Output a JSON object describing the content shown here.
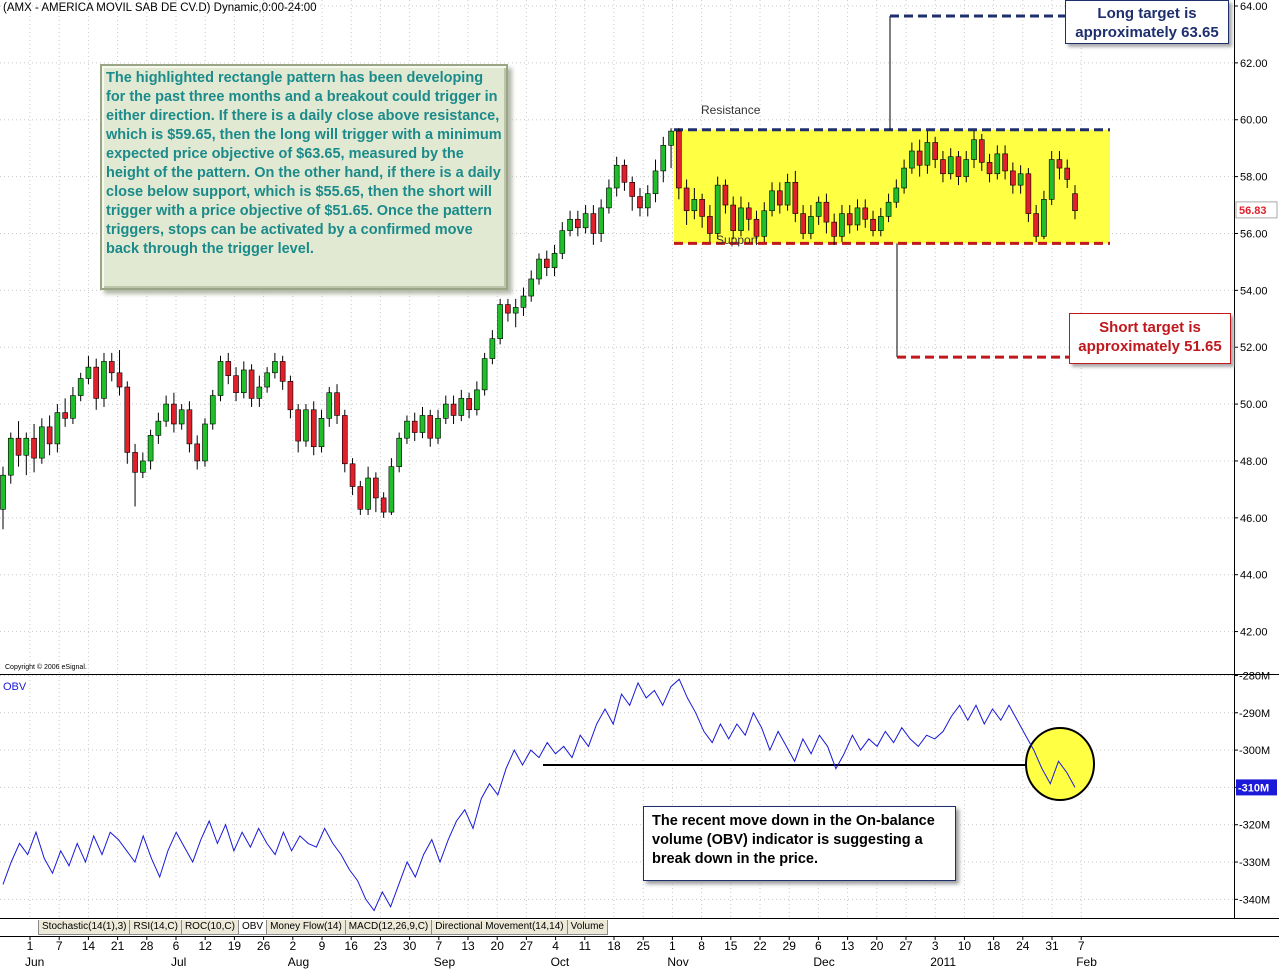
{
  "header": {
    "title": "(AMX - AMERICA MOVIL SAB DE CV.D) Dynamic,0:00-24:00"
  },
  "copyright": "Copyright © 2006 eSignal.",
  "annotations": {
    "main_note": "The highlighted rectangle pattern has been developing for the past three months and a breakout could trigger in either direction. If there is a daily close above resistance, which is $59.65, then the long will trigger with a minimum expected price objective of $63.65, measured by the height of the pattern. On the other hand, if there is a daily close below support, which is $55.65, then the short will trigger with a price objective of $51.65. Once the pattern triggers, stops can be activated by a confirmed move back through the trigger level.",
    "long_target": "Long target is approximately  63.65",
    "short_target": "Short target is approximately 51.65",
    "obv_note": "The recent move down in the On-balance volume (OBV) indicator is suggesting a break down in the price.",
    "resistance": "Resistance",
    "support": "Support"
  },
  "indicator_tabs": [
    "Stochastic(14(1),3)",
    "RSI(14,C)",
    "ROC(10,C)",
    "OBV",
    "Money Flow(14)",
    "MACD(12,26,9,C)",
    "Directional Movement(14,14)",
    "Volume"
  ],
  "active_tab": "OBV",
  "colors": {
    "up": "#1fbe2a",
    "down": "#e0202a",
    "rect_fill": "#ffff44",
    "resistance_line": "#1e2f6d",
    "support_line": "#c0181c",
    "obv_line": "#1a1ad8",
    "last_price_bg": "#ffffff",
    "last_price_fg": "#e0202a",
    "obv_badge_bg": "#1a1ad8"
  },
  "chart_data": [
    {
      "type": "candlestick",
      "title": "(AMX - AMERICA MOVIL SAB DE CV.D) Dynamic,0:00-24:00",
      "ylim": [
        41,
        64
      ],
      "y_ticks": [
        "64.00",
        "62.00",
        "60.00",
        "58.00",
        "56.00",
        "54.00",
        "52.00",
        "50.00",
        "48.00",
        "46.00",
        "44.00",
        "42.00"
      ],
      "last_price": "56.83",
      "resistance": 59.65,
      "support": 55.65,
      "long_target": 63.65,
      "short_target": 51.65,
      "x_day_labels": [
        "1",
        "7",
        "14",
        "21",
        "28",
        "6",
        "12",
        "19",
        "26",
        "2",
        "9",
        "16",
        "23",
        "30",
        "7",
        "13",
        "20",
        "27",
        "4",
        "11",
        "18",
        "25",
        "1",
        "8",
        "15",
        "22",
        "29",
        "6",
        "13",
        "20",
        "27",
        "3",
        "10",
        "18",
        "24",
        "31",
        "7"
      ],
      "x_month_labels": [
        "Jun",
        "Jul",
        "Aug",
        "Sep",
        "Oct",
        "Nov",
        "Dec",
        "2011",
        "Feb"
      ],
      "candles": [
        [
          46.3,
          47.5,
          45.6,
          47.8
        ],
        [
          47.5,
          48.8,
          47.2,
          49.0
        ],
        [
          48.8,
          48.2,
          47.8,
          49.4
        ],
        [
          48.2,
          48.8,
          47.5,
          49.0
        ],
        [
          48.8,
          48.1,
          47.6,
          49.3
        ],
        [
          48.1,
          49.2,
          47.9,
          49.5
        ],
        [
          49.2,
          48.6,
          48.2,
          49.6
        ],
        [
          48.6,
          49.7,
          48.3,
          50.0
        ],
        [
          49.7,
          49.5,
          49.2,
          50.2
        ],
        [
          49.5,
          50.3,
          49.3,
          50.6
        ],
        [
          50.3,
          50.9,
          50.1,
          51.1
        ],
        [
          50.9,
          51.3,
          50.7,
          51.7
        ],
        [
          51.3,
          50.2,
          49.8,
          51.6
        ],
        [
          50.2,
          51.5,
          49.9,
          51.8
        ],
        [
          51.5,
          51.1,
          50.8,
          51.8
        ],
        [
          51.1,
          50.6,
          50.3,
          51.9
        ],
        [
          50.6,
          48.3,
          47.9,
          50.8
        ],
        [
          48.3,
          47.6,
          46.4,
          48.6
        ],
        [
          47.6,
          48.0,
          47.4,
          48.3
        ],
        [
          48.0,
          48.9,
          47.7,
          49.1
        ],
        [
          48.9,
          49.4,
          48.6,
          49.7
        ],
        [
          49.4,
          50.0,
          49.2,
          50.3
        ],
        [
          50.0,
          49.3,
          49.0,
          50.4
        ],
        [
          49.3,
          49.8,
          49.1,
          50.0
        ],
        [
          49.8,
          48.6,
          48.3,
          50.1
        ],
        [
          48.6,
          48.0,
          47.7,
          48.9
        ],
        [
          48.0,
          49.3,
          47.8,
          49.5
        ],
        [
          49.3,
          50.3,
          49.1,
          50.5
        ],
        [
          50.3,
          51.5,
          50.1,
          51.7
        ],
        [
          51.5,
          51.0,
          50.7,
          51.8
        ],
        [
          51.0,
          50.4,
          50.1,
          51.3
        ],
        [
          50.4,
          51.2,
          50.2,
          51.5
        ],
        [
          51.2,
          50.2,
          49.9,
          51.4
        ],
        [
          50.2,
          50.6,
          49.9,
          51.0
        ],
        [
          50.6,
          51.1,
          50.4,
          51.3
        ],
        [
          51.1,
          51.5,
          50.9,
          51.8
        ],
        [
          51.5,
          50.8,
          50.5,
          51.7
        ],
        [
          50.8,
          49.8,
          49.5,
          51.0
        ],
        [
          49.8,
          48.7,
          48.3,
          50.0
        ],
        [
          48.7,
          49.8,
          48.5,
          50.0
        ],
        [
          49.8,
          48.5,
          48.2,
          50.1
        ],
        [
          48.5,
          49.5,
          48.3,
          49.8
        ],
        [
          49.5,
          50.4,
          49.2,
          50.6
        ],
        [
          50.4,
          49.6,
          49.3,
          50.7
        ],
        [
          49.6,
          47.9,
          47.6,
          49.8
        ],
        [
          47.9,
          47.1,
          46.8,
          48.1
        ],
        [
          47.1,
          46.3,
          46.1,
          47.3
        ],
        [
          46.3,
          47.4,
          46.1,
          47.8
        ],
        [
          47.4,
          46.7,
          46.2,
          47.6
        ],
        [
          46.7,
          46.2,
          46.0,
          46.9
        ],
        [
          46.2,
          47.8,
          46.1,
          48.1
        ],
        [
          47.8,
          48.8,
          47.6,
          49.0
        ],
        [
          48.8,
          49.4,
          48.6,
          49.6
        ],
        [
          49.4,
          49.0,
          48.7,
          49.7
        ],
        [
          49.0,
          49.6,
          48.8,
          49.9
        ],
        [
          49.6,
          48.8,
          48.5,
          49.8
        ],
        [
          48.8,
          49.5,
          48.6,
          49.8
        ],
        [
          49.5,
          50.0,
          49.3,
          50.3
        ],
        [
          50.0,
          49.6,
          49.3,
          50.3
        ],
        [
          49.6,
          50.2,
          49.4,
          50.5
        ],
        [
          50.2,
          49.8,
          49.5,
          50.4
        ],
        [
          49.8,
          50.5,
          49.6,
          50.8
        ],
        [
          50.5,
          51.6,
          50.3,
          51.8
        ],
        [
          51.6,
          52.3,
          51.4,
          52.6
        ],
        [
          52.3,
          53.5,
          52.1,
          53.7
        ],
        [
          53.5,
          53.2,
          52.9,
          53.7
        ],
        [
          53.2,
          53.4,
          52.7,
          53.7
        ],
        [
          53.4,
          53.8,
          53.1,
          54.1
        ],
        [
          53.8,
          54.4,
          53.6,
          54.7
        ],
        [
          54.4,
          55.1,
          54.2,
          55.3
        ],
        [
          55.1,
          54.8,
          54.5,
          55.4
        ],
        [
          54.8,
          55.3,
          54.5,
          55.6
        ],
        [
          55.3,
          56.1,
          55.1,
          56.4
        ],
        [
          56.1,
          56.5,
          55.9,
          56.8
        ],
        [
          56.5,
          56.2,
          55.9,
          56.8
        ],
        [
          56.2,
          56.7,
          56.0,
          57.0
        ],
        [
          56.7,
          56.0,
          55.6,
          57.0
        ],
        [
          56.0,
          56.9,
          55.7,
          57.2
        ],
        [
          56.9,
          57.6,
          56.7,
          57.9
        ],
        [
          57.6,
          58.4,
          57.3,
          58.7
        ],
        [
          58.4,
          57.8,
          57.5,
          58.6
        ],
        [
          57.8,
          57.3,
          56.8,
          58.0
        ],
        [
          57.3,
          56.9,
          56.6,
          57.6
        ],
        [
          56.9,
          57.4,
          56.6,
          57.7
        ],
        [
          57.4,
          58.2,
          57.1,
          58.6
        ],
        [
          58.2,
          59.1,
          57.8,
          59.4
        ],
        [
          59.1,
          59.6,
          58.3,
          59.7
        ],
        [
          59.6,
          57.6,
          57.2,
          59.7
        ],
        [
          57.6,
          56.8,
          56.3,
          57.9
        ],
        [
          56.8,
          57.2,
          56.5,
          57.6
        ],
        [
          57.2,
          56.6,
          56.2,
          57.4
        ],
        [
          56.6,
          56.0,
          55.7,
          57.0
        ],
        [
          56.0,
          57.7,
          55.8,
          58.0
        ],
        [
          57.7,
          57.0,
          56.7,
          57.9
        ],
        [
          57.0,
          56.1,
          55.8,
          57.3
        ],
        [
          56.1,
          56.9,
          55.9,
          57.3
        ],
        [
          56.9,
          56.5,
          56.1,
          57.1
        ],
        [
          56.5,
          55.9,
          55.6,
          56.8
        ],
        [
          55.9,
          56.8,
          55.7,
          57.1
        ],
        [
          56.8,
          57.5,
          56.6,
          57.8
        ],
        [
          57.5,
          57.0,
          56.7,
          57.8
        ],
        [
          57.0,
          57.8,
          56.8,
          58.1
        ],
        [
          57.8,
          56.7,
          56.4,
          58.2
        ],
        [
          56.7,
          56.0,
          55.8,
          57.0
        ],
        [
          56.0,
          56.6,
          55.8,
          57.0
        ],
        [
          56.6,
          57.1,
          56.3,
          57.3
        ],
        [
          57.1,
          56.4,
          56.0,
          57.4
        ],
        [
          56.4,
          55.9,
          55.6,
          56.7
        ],
        [
          55.9,
          56.7,
          55.7,
          57.0
        ],
        [
          56.7,
          56.3,
          56.0,
          57.0
        ],
        [
          56.3,
          56.9,
          56.1,
          57.2
        ],
        [
          56.9,
          56.5,
          56.2,
          57.2
        ],
        [
          56.5,
          56.1,
          55.9,
          56.8
        ],
        [
          56.1,
          56.6,
          55.9,
          56.9
        ],
        [
          56.6,
          57.1,
          56.4,
          57.4
        ],
        [
          57.1,
          57.6,
          56.9,
          57.9
        ],
        [
          57.6,
          58.3,
          57.4,
          58.6
        ],
        [
          58.3,
          58.9,
          58.1,
          59.2
        ],
        [
          58.9,
          58.4,
          58.0,
          59.3
        ],
        [
          58.4,
          59.2,
          58.1,
          59.6
        ],
        [
          59.2,
          58.6,
          58.3,
          59.4
        ],
        [
          58.6,
          58.1,
          57.8,
          58.9
        ],
        [
          58.1,
          58.7,
          57.9,
          59.0
        ],
        [
          58.7,
          58.0,
          57.7,
          58.9
        ],
        [
          58.0,
          58.6,
          57.8,
          58.9
        ],
        [
          58.6,
          59.3,
          58.3,
          59.6
        ],
        [
          59.3,
          58.5,
          58.2,
          59.5
        ],
        [
          58.5,
          58.1,
          57.8,
          58.8
        ],
        [
          58.1,
          58.8,
          57.9,
          59.1
        ],
        [
          58.8,
          58.2,
          57.9,
          59.1
        ],
        [
          58.2,
          57.7,
          57.4,
          58.5
        ],
        [
          57.7,
          58.1,
          57.4,
          58.4
        ],
        [
          58.1,
          56.7,
          56.4,
          58.3
        ],
        [
          56.7,
          55.9,
          55.7,
          57.0
        ],
        [
          55.9,
          57.2,
          55.8,
          57.5
        ],
        [
          57.2,
          58.6,
          57.0,
          58.9
        ],
        [
          58.6,
          58.3,
          57.9,
          58.9
        ],
        [
          58.3,
          57.9,
          57.6,
          58.6
        ],
        [
          57.4,
          56.8,
          56.5,
          57.7
        ]
      ]
    },
    {
      "type": "line",
      "series_label": "OBV",
      "ylim": [
        -345,
        -278
      ],
      "y_ticks": [
        "-280M",
        "-290M",
        "-300M",
        "-310M",
        "-320M",
        "-330M",
        "-340M"
      ],
      "last_value": "-310M",
      "values": [
        -336,
        -330,
        -325,
        -328,
        -322,
        -329,
        -333,
        -327,
        -331,
        -325,
        -330,
        -323,
        -328,
        -322,
        -324,
        -327,
        -330,
        -323,
        -329,
        -334,
        -327,
        -322,
        -326,
        -330,
        -324,
        -319,
        -325,
        -320,
        -327,
        -322,
        -326,
        -321,
        -325,
        -328,
        -322,
        -327,
        -323,
        -325,
        -326,
        -321,
        -325,
        -328,
        -332,
        -335,
        -340,
        -343,
        -338,
        -342,
        -336,
        -330,
        -334,
        -328,
        -324,
        -330,
        -324,
        -319,
        -316,
        -321,
        -313,
        -309,
        -312,
        -305,
        -300,
        -304,
        -300,
        -302,
        -298,
        -301,
        -299,
        -302,
        -296,
        -299,
        -293,
        -289,
        -293,
        -285,
        -288,
        -282,
        -286,
        -284,
        -288,
        -283,
        -281,
        -286,
        -290,
        -295,
        -298,
        -293,
        -297,
        -293,
        -296,
        -290,
        -294,
        -300,
        -295,
        -299,
        -303,
        -297,
        -301,
        -296,
        -299,
        -305,
        -301,
        -296,
        -300,
        -297,
        -299,
        -295,
        -298,
        -294,
        -297,
        -299,
        -296,
        -297,
        -295,
        -291,
        -288,
        -292,
        -288,
        -293,
        -289,
        -292,
        -288,
        -292,
        -296,
        -300,
        -305,
        -309,
        -303,
        -306,
        -310
      ]
    }
  ]
}
